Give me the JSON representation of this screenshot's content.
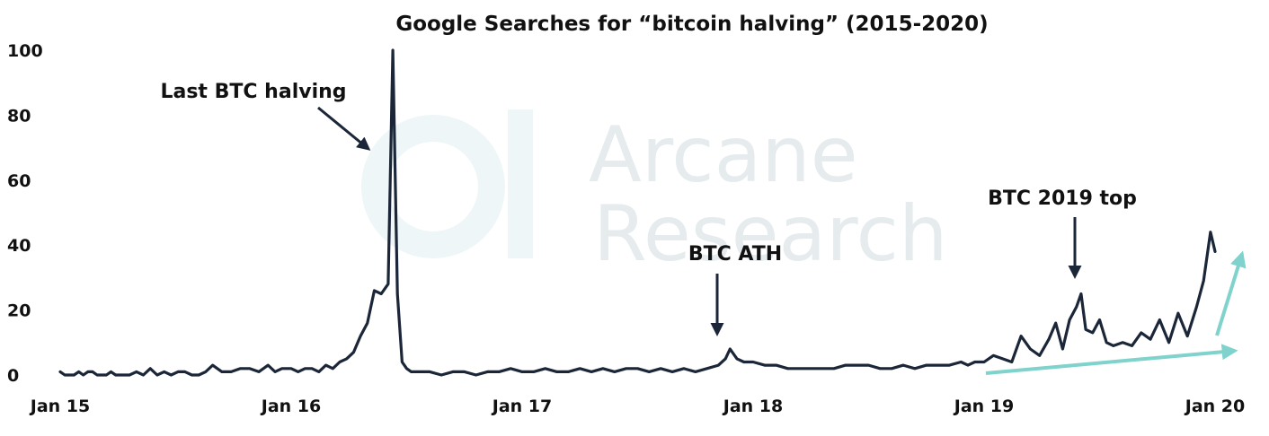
{
  "chart_data": {
    "type": "line",
    "title": "Google Searches for “bitcoin halving” (2015-2020)",
    "xlabel": "",
    "ylabel": "",
    "ylim": [
      0,
      100
    ],
    "y_ticks": [
      "0",
      "20",
      "40",
      "60",
      "80",
      "100"
    ],
    "x_ticks": [
      "Jan 15",
      "Jan 16",
      "Jan 17",
      "Jan 18",
      "Jan 19",
      "Jan 20"
    ],
    "x_range": [
      2015.0,
      2020.0
    ],
    "grid": false,
    "legend": "none",
    "line_color": "#1b2638",
    "watermark": [
      "Arcane",
      "Research"
    ],
    "series": [
      {
        "x": [
          2015.0,
          2015.02,
          2015.04,
          2015.06,
          2015.08,
          2015.1,
          2015.12,
          2015.14,
          2015.16,
          2015.18,
          2015.2,
          2015.22,
          2015.24,
          2015.27,
          2015.3,
          2015.33,
          2015.36,
          2015.39,
          2015.42,
          2015.45,
          2015.48,
          2015.51,
          2015.54,
          2015.57,
          2015.6,
          2015.63,
          2015.66,
          2015.7,
          2015.74,
          2015.78,
          2015.82,
          2015.86,
          2015.9,
          2015.93,
          2015.96,
          2016.0,
          2016.03,
          2016.06,
          2016.09,
          2016.12,
          2016.15,
          2016.18,
          2016.21,
          2016.24,
          2016.27,
          2016.3,
          2016.33,
          2016.36,
          2016.39,
          2016.42,
          2016.44,
          2016.46,
          2016.48,
          2016.5,
          2016.52,
          2016.54,
          2016.56,
          2016.58,
          2016.6,
          2016.65,
          2016.7,
          2016.75,
          2016.8,
          2016.85,
          2016.9,
          2016.95,
          2017.0,
          2017.05,
          2017.1,
          2017.15,
          2017.2,
          2017.25,
          2017.3,
          2017.35,
          2017.4,
          2017.45,
          2017.5,
          2017.55,
          2017.6,
          2017.65,
          2017.7,
          2017.75,
          2017.8,
          2017.85,
          2017.88,
          2017.9,
          2017.93,
          2017.96,
          2018.0,
          2018.05,
          2018.1,
          2018.15,
          2018.2,
          2018.25,
          2018.3,
          2018.35,
          2018.4,
          2018.45,
          2018.5,
          2018.55,
          2018.6,
          2018.65,
          2018.7,
          2018.75,
          2018.8,
          2018.85,
          2018.9,
          2018.93,
          2018.96,
          2019.0,
          2019.04,
          2019.08,
          2019.12,
          2019.16,
          2019.2,
          2019.24,
          2019.28,
          2019.31,
          2019.34,
          2019.37,
          2019.4,
          2019.42,
          2019.44,
          2019.47,
          2019.5,
          2019.53,
          2019.56,
          2019.6,
          2019.64,
          2019.68,
          2019.72,
          2019.76,
          2019.8,
          2019.84,
          2019.88,
          2019.92,
          2019.95,
          2019.98,
          2020.0
        ],
        "y": [
          1,
          0,
          0,
          0,
          1,
          0,
          1,
          1,
          0,
          0,
          0,
          1,
          0,
          0,
          0,
          1,
          0,
          2,
          0,
          1,
          0,
          1,
          1,
          0,
          0,
          1,
          3,
          1,
          1,
          2,
          2,
          1,
          3,
          1,
          2,
          2,
          1,
          2,
          2,
          1,
          3,
          2,
          4,
          5,
          7,
          12,
          16,
          26,
          25,
          28,
          100,
          25,
          4,
          2,
          1,
          1,
          1,
          1,
          1,
          0,
          1,
          1,
          0,
          1,
          1,
          2,
          1,
          1,
          2,
          1,
          1,
          2,
          1,
          2,
          1,
          2,
          2,
          1,
          2,
          1,
          2,
          1,
          2,
          3,
          5,
          8,
          5,
          4,
          4,
          3,
          3,
          2,
          2,
          2,
          2,
          2,
          3,
          3,
          3,
          2,
          2,
          3,
          2,
          3,
          3,
          3,
          4,
          3,
          4,
          4,
          6,
          5,
          4,
          12,
          8,
          6,
          11,
          16,
          8,
          17,
          21,
          25,
          14,
          13,
          17,
          10,
          9,
          10,
          9,
          13,
          11,
          17,
          10,
          19,
          12,
          21,
          29,
          44,
          38
        ]
      }
    ],
    "annotations": [
      {
        "text": "Last BTC halving",
        "x": 2016.44,
        "y": 100
      },
      {
        "text": "BTC ATH",
        "x": 2017.96,
        "y": 8
      },
      {
        "text": "BTC 2019 top",
        "x": 2019.44,
        "y": 25
      }
    ],
    "trend_arrows": {
      "color": "#7fd3cc"
    }
  }
}
